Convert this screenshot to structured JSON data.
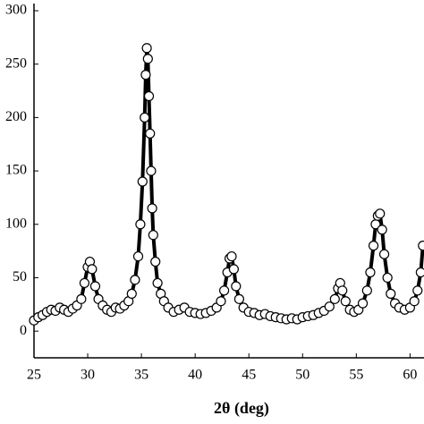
{
  "chart_data": {
    "type": "scatter",
    "xlabel": "2θ (deg)",
    "xlim": [
      25,
      61.3
    ],
    "ylim": [
      -25,
      300
    ],
    "xticks": [
      25,
      30,
      35,
      40,
      45,
      50,
      55,
      60
    ],
    "yticks": [
      0,
      50,
      100,
      150,
      200,
      250,
      300
    ],
    "color": "#000000",
    "x": [
      25,
      25.4,
      25.8,
      26.2,
      26.6,
      27,
      27.4,
      27.8,
      28.2,
      28.6,
      29,
      29.4,
      29.7,
      30,
      30.2,
      30.4,
      30.7,
      31,
      31.4,
      31.8,
      32.2,
      32.6,
      33,
      33.4,
      33.8,
      34.1,
      34.4,
      34.7,
      34.9,
      35.1,
      35.3,
      35.4,
      35.5,
      35.6,
      35.7,
      35.8,
      35.9,
      36,
      36.1,
      36.3,
      36.5,
      36.8,
      37.1,
      37.5,
      38,
      38.5,
      39,
      39.5,
      40,
      40.5,
      41,
      41.5,
      42,
      42.4,
      42.7,
      43,
      43.2,
      43.4,
      43.6,
      43.8,
      44.1,
      44.5,
      45,
      45.5,
      46,
      46.5,
      47,
      47.5,
      48,
      48.5,
      49,
      49.5,
      50,
      50.5,
      51,
      51.5,
      52,
      52.5,
      53,
      53.3,
      53.5,
      53.7,
      54,
      54.4,
      54.8,
      55.2,
      55.6,
      56,
      56.3,
      56.6,
      56.8,
      57,
      57.2,
      57.4,
      57.6,
      57.9,
      58.2,
      58.6,
      59,
      59.5,
      60,
      60.4,
      60.7,
      61,
      61.2
    ],
    "values": [
      10,
      13,
      15,
      18,
      20,
      19,
      22,
      20,
      18,
      21,
      24,
      30,
      45,
      60,
      65,
      58,
      42,
      30,
      24,
      20,
      18,
      22,
      21,
      24,
      28,
      35,
      48,
      70,
      100,
      140,
      200,
      240,
      265,
      255,
      220,
      185,
      150,
      115,
      90,
      65,
      45,
      35,
      28,
      22,
      18,
      20,
      22,
      18,
      17,
      16,
      17,
      19,
      22,
      28,
      38,
      55,
      68,
      70,
      58,
      42,
      30,
      22,
      18,
      17,
      15,
      16,
      14,
      13,
      12,
      11,
      12,
      11,
      13,
      14,
      15,
      17,
      19,
      23,
      30,
      40,
      45,
      38,
      28,
      20,
      18,
      20,
      26,
      38,
      55,
      80,
      100,
      108,
      110,
      95,
      72,
      50,
      35,
      26,
      22,
      20,
      22,
      28,
      38,
      55,
      80
    ]
  }
}
